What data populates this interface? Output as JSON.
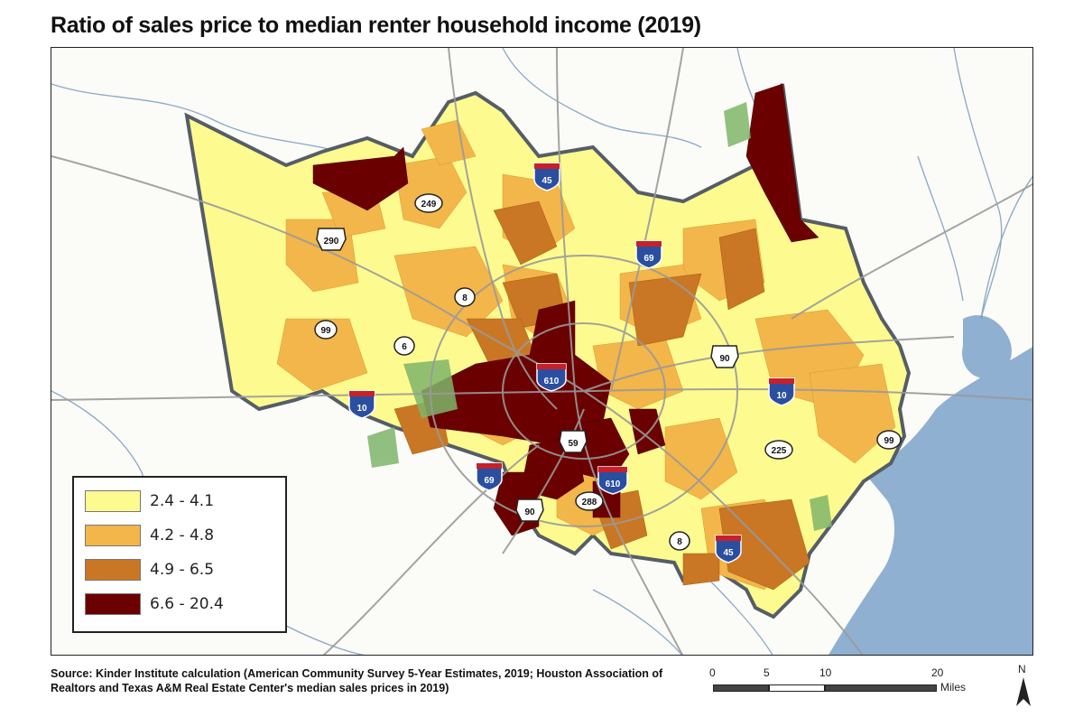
{
  "title": "Ratio of sales price to median renter household income (2019)",
  "legend": {
    "items": [
      {
        "label": "2.4 - 4.1",
        "color": "#fdfb8f"
      },
      {
        "label": "4.2 - 4.8",
        "color": "#f3b64a"
      },
      {
        "label": "4.9 - 6.5",
        "color": "#c97725"
      },
      {
        "label": "6.6 - 20.4",
        "color": "#6b0000"
      }
    ]
  },
  "highway_labels": {
    "i45_north": "45",
    "i45_south": "45",
    "i69_north": "69",
    "i69_south": "69",
    "i610_north": "610",
    "i610_south": "610",
    "i10_west": "10",
    "i10_east": "10",
    "us290": "290",
    "us90_east": "90",
    "us90_south": "90",
    "us59": "59",
    "sh249": "249",
    "sh8_west": "8",
    "sh8_south": "8",
    "sh99_west": "99",
    "sh99_east": "99",
    "sh6": "6",
    "sh225": "225",
    "sh288": "288"
  },
  "source": "Source: Kinder Institute calculation (American Community Survey 5-Year Estimates, 2019; Houston Association of Realtors and Texas A&M Real Estate Center's median sales prices in 2019)",
  "scale_bar": {
    "ticks": [
      "0",
      "5",
      "10",
      "20"
    ],
    "unit": "Miles"
  },
  "north_arrow": "N",
  "colors": {
    "water": "#8fb0d0",
    "county_border": "#555d66",
    "park_green": "#7fb56a",
    "road": "#9a9a9a"
  }
}
